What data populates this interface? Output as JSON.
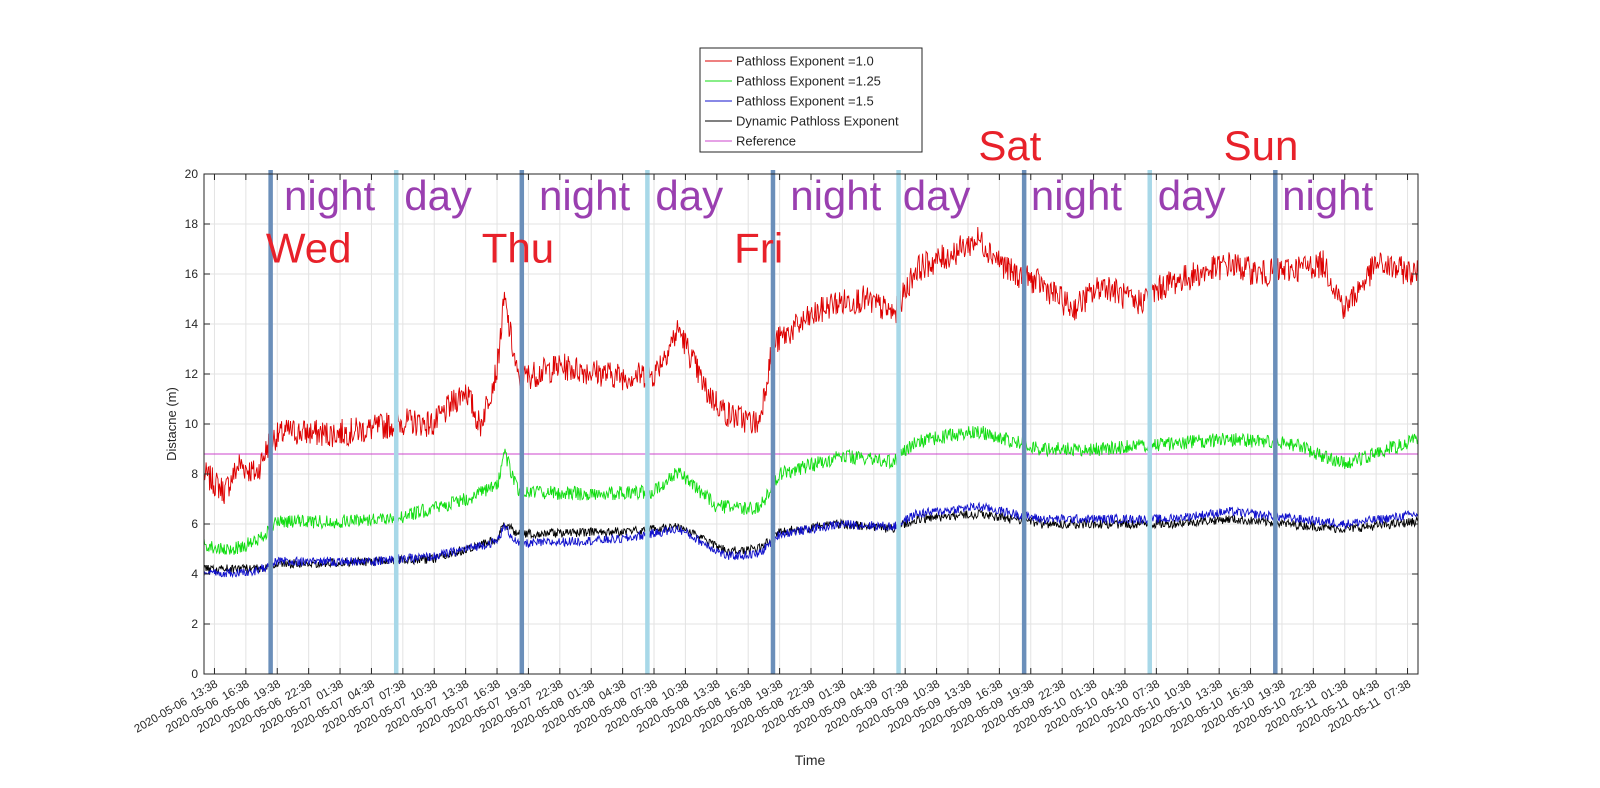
{
  "chart_data": {
    "type": "line",
    "xlabel": "Time",
    "ylabel": "Distacne (m)",
    "ylim": [
      0,
      20
    ],
    "yticks": [
      0,
      2,
      4,
      6,
      8,
      10,
      12,
      14,
      16,
      18,
      20
    ],
    "xlim": [
      "2020-05-06 12:38",
      "2020-05-11 08:38"
    ],
    "x_tick_labels": [
      "2020-05-06  13:38",
      "2020-05-06  16:38",
      "2020-05-06  19:38",
      "2020-05-06  22:38",
      "2020-05-07  01:38",
      "2020-05-07  04:38",
      "2020-05-07  07:38",
      "2020-05-07  10:38",
      "2020-05-07  13:38",
      "2020-05-07  16:38",
      "2020-05-07  19:38",
      "2020-05-07  22:38",
      "2020-05-08  01:38",
      "2020-05-08  04:38",
      "2020-05-08  07:38",
      "2020-05-08  10:38",
      "2020-05-08  13:38",
      "2020-05-08  16:38",
      "2020-05-08  19:38",
      "2020-05-08  22:38",
      "2020-05-09  01:38",
      "2020-05-09  04:38",
      "2020-05-09  07:38",
      "2020-05-09  10:38",
      "2020-05-09  13:38",
      "2020-05-09  16:38",
      "2020-05-09  19:38",
      "2020-05-09  22:38",
      "2020-05-10  01:38",
      "2020-05-10  04:38",
      "2020-05-10  07:38",
      "2020-05-10  10:38",
      "2020-05-10  13:38",
      "2020-05-10  16:38",
      "2020-05-10  19:38",
      "2020-05-10  22:38",
      "2020-05-11  01:38",
      "2020-05-11  04:38",
      "2020-05-11  07:38"
    ],
    "grid": true,
    "legend_position": "top-center",
    "series": [
      {
        "name": "Pathloss Exponent =1.0",
        "color": "#dd0000",
        "points": [
          [
            "2020-05-06 12:38",
            8.0
          ],
          [
            "2020-05-06 14:38",
            7.3
          ],
          [
            "2020-05-06 16:00",
            8.4
          ],
          [
            "2020-05-06 17:38",
            8.0
          ],
          [
            "2020-05-06 19:00",
            9.4
          ],
          [
            "2020-05-06 20:38",
            9.7
          ],
          [
            "2020-05-07 00:38",
            9.6
          ],
          [
            "2020-05-07 04:38",
            9.8
          ],
          [
            "2020-05-07 07:38",
            10.1
          ],
          [
            "2020-05-07 10:38",
            10.0
          ],
          [
            "2020-05-07 13:38",
            11.4
          ],
          [
            "2020-05-07 15:00",
            9.9
          ],
          [
            "2020-05-07 16:38",
            12.2
          ],
          [
            "2020-05-07 17:20",
            15.0
          ],
          [
            "2020-05-07 18:38",
            11.8
          ],
          [
            "2020-05-07 22:38",
            12.3
          ],
          [
            "2020-05-08 01:38",
            12.1
          ],
          [
            "2020-05-08 04:38",
            11.9
          ],
          [
            "2020-05-08 07:38",
            12.0
          ],
          [
            "2020-05-08 10:00",
            13.8
          ],
          [
            "2020-05-08 12:38",
            11.3
          ],
          [
            "2020-05-08 14:38",
            10.4
          ],
          [
            "2020-05-08 17:38",
            10.0
          ],
          [
            "2020-05-08 19:00",
            13.2
          ],
          [
            "2020-05-08 21:38",
            14.0
          ],
          [
            "2020-05-09 00:38",
            14.8
          ],
          [
            "2020-05-09 03:38",
            15.0
          ],
          [
            "2020-05-09 06:38",
            14.4
          ],
          [
            "2020-05-09 08:38",
            16.2
          ],
          [
            "2020-05-09 11:38",
            16.7
          ],
          [
            "2020-05-09 14:38",
            17.4
          ],
          [
            "2020-05-09 17:38",
            16.1
          ],
          [
            "2020-05-09 20:38",
            15.6
          ],
          [
            "2020-05-09 23:38",
            14.6
          ],
          [
            "2020-05-10 02:38",
            15.6
          ],
          [
            "2020-05-10 05:38",
            14.8
          ],
          [
            "2020-05-10 08:38",
            15.6
          ],
          [
            "2020-05-10 11:38",
            16.0
          ],
          [
            "2020-05-10 14:38",
            16.4
          ],
          [
            "2020-05-10 17:38",
            16.0
          ],
          [
            "2020-05-10 20:38",
            16.2
          ],
          [
            "2020-05-10 23:38",
            16.4
          ],
          [
            "2020-05-11 01:38",
            14.6
          ],
          [
            "2020-05-11 04:38",
            16.4
          ],
          [
            "2020-05-11 08:38",
            16.0
          ]
        ]
      },
      {
        "name": "Pathloss Exponent =1.25",
        "color": "#11dd11",
        "points": [
          [
            "2020-05-06 12:38",
            5.2
          ],
          [
            "2020-05-06 14:38",
            4.9
          ],
          [
            "2020-05-06 17:38",
            5.3
          ],
          [
            "2020-05-06 19:38",
            6.1
          ],
          [
            "2020-05-07 01:38",
            6.1
          ],
          [
            "2020-05-07 07:38",
            6.3
          ],
          [
            "2020-05-07 13:38",
            7.0
          ],
          [
            "2020-05-07 16:38",
            7.5
          ],
          [
            "2020-05-07 17:20",
            8.9
          ],
          [
            "2020-05-07 18:38",
            7.3
          ],
          [
            "2020-05-08 01:38",
            7.2
          ],
          [
            "2020-05-08 07:38",
            7.3
          ],
          [
            "2020-05-08 10:00",
            8.1
          ],
          [
            "2020-05-08 13:38",
            6.7
          ],
          [
            "2020-05-08 17:38",
            6.6
          ],
          [
            "2020-05-08 19:38",
            8.0
          ],
          [
            "2020-05-09 01:38",
            8.7
          ],
          [
            "2020-05-09 06:38",
            8.5
          ],
          [
            "2020-05-09 08:38",
            9.3
          ],
          [
            "2020-05-09 14:38",
            9.7
          ],
          [
            "2020-05-09 20:38",
            9.0
          ],
          [
            "2020-05-10 02:38",
            9.0
          ],
          [
            "2020-05-10 08:38",
            9.2
          ],
          [
            "2020-05-10 14:38",
            9.4
          ],
          [
            "2020-05-10 20:38",
            9.2
          ],
          [
            "2020-05-11 01:38",
            8.4
          ],
          [
            "2020-05-11 08:38",
            9.4
          ]
        ]
      },
      {
        "name": "Pathloss Exponent =1.5",
        "color": "#1111cc",
        "points": [
          [
            "2020-05-06 12:38",
            4.0
          ],
          [
            "2020-05-06 17:38",
            4.1
          ],
          [
            "2020-05-06 19:38",
            4.5
          ],
          [
            "2020-05-07 04:38",
            4.5
          ],
          [
            "2020-05-07 10:38",
            4.7
          ],
          [
            "2020-05-07 16:38",
            5.3
          ],
          [
            "2020-05-07 17:20",
            5.9
          ],
          [
            "2020-05-07 18:38",
            5.2
          ],
          [
            "2020-05-08 04:38",
            5.4
          ],
          [
            "2020-05-08 10:00",
            5.8
          ],
          [
            "2020-05-08 14:38",
            4.7
          ],
          [
            "2020-05-08 17:38",
            4.8
          ],
          [
            "2020-05-08 19:38",
            5.6
          ],
          [
            "2020-05-09 01:38",
            6.0
          ],
          [
            "2020-05-09 06:38",
            5.9
          ],
          [
            "2020-05-09 08:38",
            6.4
          ],
          [
            "2020-05-09 14:38",
            6.7
          ],
          [
            "2020-05-09 20:38",
            6.2
          ],
          [
            "2020-05-10 08:38",
            6.2
          ],
          [
            "2020-05-10 14:38",
            6.5
          ],
          [
            "2020-05-11 01:38",
            6.0
          ],
          [
            "2020-05-11 08:38",
            6.4
          ]
        ]
      },
      {
        "name": "Dynamic Pathloss Exponent",
        "color": "#000000",
        "points": [
          [
            "2020-05-06 12:38",
            4.2
          ],
          [
            "2020-05-06 17:38",
            4.2
          ],
          [
            "2020-05-06 19:38",
            4.4
          ],
          [
            "2020-05-07 04:38",
            4.5
          ],
          [
            "2020-05-07 10:38",
            4.6
          ],
          [
            "2020-05-07 16:38",
            5.4
          ],
          [
            "2020-05-07 17:20",
            6.0
          ],
          [
            "2020-05-07 18:38",
            5.6
          ],
          [
            "2020-05-08 04:38",
            5.7
          ],
          [
            "2020-05-08 10:00",
            5.9
          ],
          [
            "2020-05-08 14:38",
            4.9
          ],
          [
            "2020-05-08 17:38",
            5.0
          ],
          [
            "2020-05-08 19:38",
            5.7
          ],
          [
            "2020-05-09 01:38",
            6.0
          ],
          [
            "2020-05-09 06:38",
            5.8
          ],
          [
            "2020-05-09 08:38",
            6.2
          ],
          [
            "2020-05-09 14:38",
            6.4
          ],
          [
            "2020-05-09 20:38",
            6.0
          ],
          [
            "2020-05-10 08:38",
            6.0
          ],
          [
            "2020-05-10 14:38",
            6.2
          ],
          [
            "2020-05-11 01:38",
            5.8
          ],
          [
            "2020-05-11 08:38",
            6.1
          ]
        ]
      },
      {
        "name": "Reference",
        "color": "#cc44cc",
        "points": [
          [
            "2020-05-06 12:38",
            8.8
          ],
          [
            "2020-05-11 08:38",
            8.8
          ]
        ]
      }
    ],
    "vertical_markers": [
      {
        "x": "2020-05-06 19:00",
        "color": "#6b8fba"
      },
      {
        "x": "2020-05-07 07:00",
        "color": "#a8d8e8"
      },
      {
        "x": "2020-05-07 19:00",
        "color": "#6b8fba"
      },
      {
        "x": "2020-05-08 07:00",
        "color": "#a8d8e8"
      },
      {
        "x": "2020-05-08 19:00",
        "color": "#6b8fba"
      },
      {
        "x": "2020-05-09 07:00",
        "color": "#a8d8e8"
      },
      {
        "x": "2020-05-09 19:00",
        "color": "#6b8fba"
      },
      {
        "x": "2020-05-10 07:00",
        "color": "#a8d8e8"
      },
      {
        "x": "2020-05-10 19:00",
        "color": "#6b8fba"
      }
    ],
    "annotations": {
      "period_labels": [
        {
          "text": "night",
          "x": "2020-05-07 00:38",
          "y": 19.2
        },
        {
          "text": "day",
          "x": "2020-05-07 11:00",
          "y": 19.2
        },
        {
          "text": "night",
          "x": "2020-05-08 01:00",
          "y": 19.2
        },
        {
          "text": "day",
          "x": "2020-05-08 11:00",
          "y": 19.2
        },
        {
          "text": "night",
          "x": "2020-05-09 01:00",
          "y": 19.2
        },
        {
          "text": "day",
          "x": "2020-05-09 10:38",
          "y": 19.2
        },
        {
          "text": "night",
          "x": "2020-05-10 00:00",
          "y": 19.2
        },
        {
          "text": "day",
          "x": "2020-05-10 11:00",
          "y": 19.2
        },
        {
          "text": "night",
          "x": "2020-05-11 00:00",
          "y": 19.2
        }
      ],
      "day_labels": [
        {
          "text": "Wed",
          "x": "2020-05-06 22:38",
          "y": 17.1
        },
        {
          "text": "Thu",
          "x": "2020-05-07 18:38",
          "y": 17.1
        },
        {
          "text": "Fri",
          "x": "2020-05-08 17:38",
          "y": 17.1
        },
        {
          "text": "Sat",
          "x": "2020-05-09 17:38",
          "y": 21.2
        },
        {
          "text": "Sun",
          "x": "2020-05-10 17:38",
          "y": 21.2
        }
      ],
      "period_color": "#9a3fb0",
      "day_color": "#e8212a"
    }
  }
}
